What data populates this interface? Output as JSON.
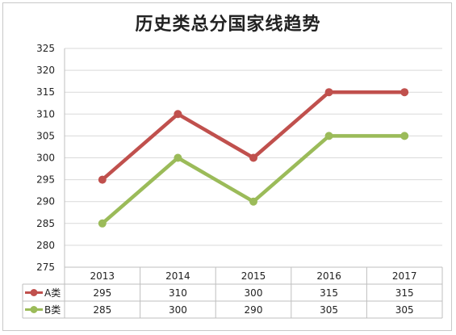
{
  "chart_data": {
    "type": "line",
    "title": "历史类总分国家线趋势",
    "categories": [
      "2013",
      "2014",
      "2015",
      "2016",
      "2017"
    ],
    "series": [
      {
        "name": "A类",
        "values": [
          295,
          310,
          300,
          315,
          315
        ],
        "color": "#c0504d"
      },
      {
        "name": "B类",
        "values": [
          285,
          300,
          290,
          305,
          305
        ],
        "color": "#9bbb59"
      }
    ],
    "ylim": [
      275,
      325
    ],
    "yticks": [
      275,
      280,
      285,
      290,
      295,
      300,
      305,
      310,
      315,
      320,
      325
    ],
    "grid": true,
    "legend": "data-table"
  }
}
